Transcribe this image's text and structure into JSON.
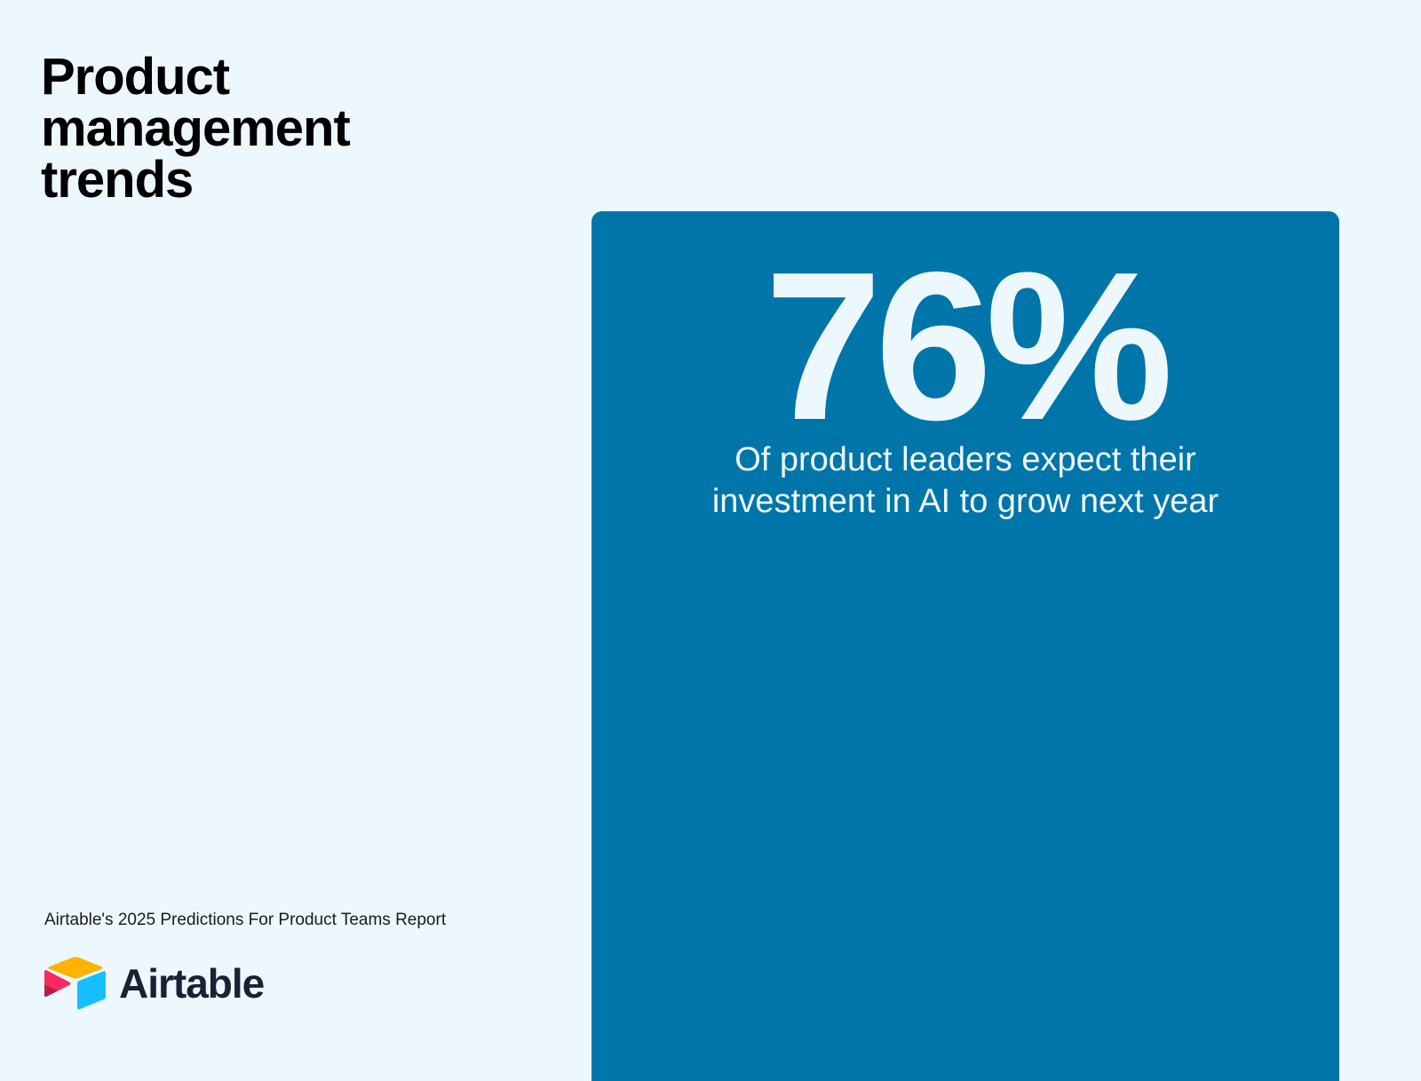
{
  "header": {
    "title_lines": [
      "Product",
      "management",
      "trends"
    ]
  },
  "stat": {
    "value": "76%",
    "caption_lines": [
      "Of product leaders expect their",
      "investment in AI to grow next year"
    ]
  },
  "footer": {
    "source": "Airtable's 2025 Predictions For Product Teams Report",
    "brand_name": "Airtable",
    "logo_icon": "airtable-logo-icon"
  },
  "colors": {
    "background": "#ecf8fe",
    "card": "#0075a9",
    "card_text": "#ecf8fe",
    "title_text": "#000000",
    "logo_yellow": "#fcb400",
    "logo_blue": "#18bfff",
    "logo_red": "#f82b60",
    "logo_dark_red": "#ba1e45"
  }
}
